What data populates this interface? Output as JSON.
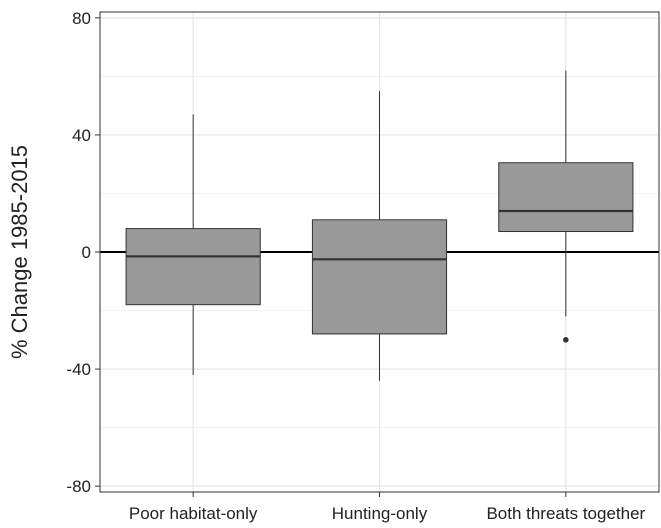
{
  "chart_data": {
    "type": "boxplot",
    "title": "",
    "xlabel": "",
    "ylabel": "% Change 1985-2015",
    "ylim": [
      -82,
      82
    ],
    "y_ticks": [
      80,
      40,
      0,
      -40,
      -80
    ],
    "categories": [
      "Poor habitat-only",
      "Hunting-only",
      "Both threats together"
    ],
    "boxes": [
      {
        "category": "Poor habitat-only",
        "whisker_low": -42,
        "q1": -18,
        "median": -1.5,
        "q3": 8,
        "whisker_high": 47,
        "outliers": []
      },
      {
        "category": "Hunting-only",
        "whisker_low": -44,
        "q1": -28,
        "median": -2.5,
        "q3": 11,
        "whisker_high": 55,
        "outliers": []
      },
      {
        "category": "Both threats together",
        "whisker_low": -22,
        "q1": 7,
        "median": 14,
        "q3": 30.5,
        "whisker_high": 62,
        "outliers": [
          -30
        ]
      }
    ],
    "reference_line_y": 0,
    "grid": true,
    "legend": "none",
    "colors": {
      "box_fill": "#999999",
      "box_stroke": "#333333",
      "whisker": "#333333",
      "grid_major": "#e6e6e6",
      "grid_minor": "#f2f2f2",
      "panel_border": "#333333",
      "reference_line": "#000000",
      "text": "#222222"
    }
  }
}
